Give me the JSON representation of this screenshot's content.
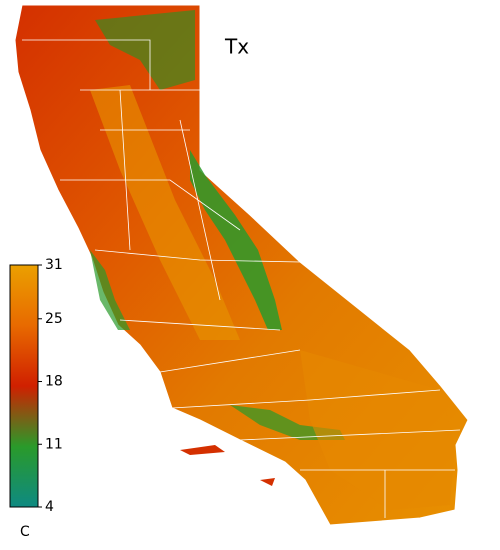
{
  "map": {
    "title": "Tx",
    "colorbar": {
      "lim": [
        4,
        31
      ],
      "ticks": [
        31,
        25,
        18,
        11,
        4
      ],
      "unit": "C",
      "colors": [
        "#0e8a82",
        "#2a9a2a",
        "#d02000",
        "#e86a00",
        "#eba000"
      ]
    }
  }
}
